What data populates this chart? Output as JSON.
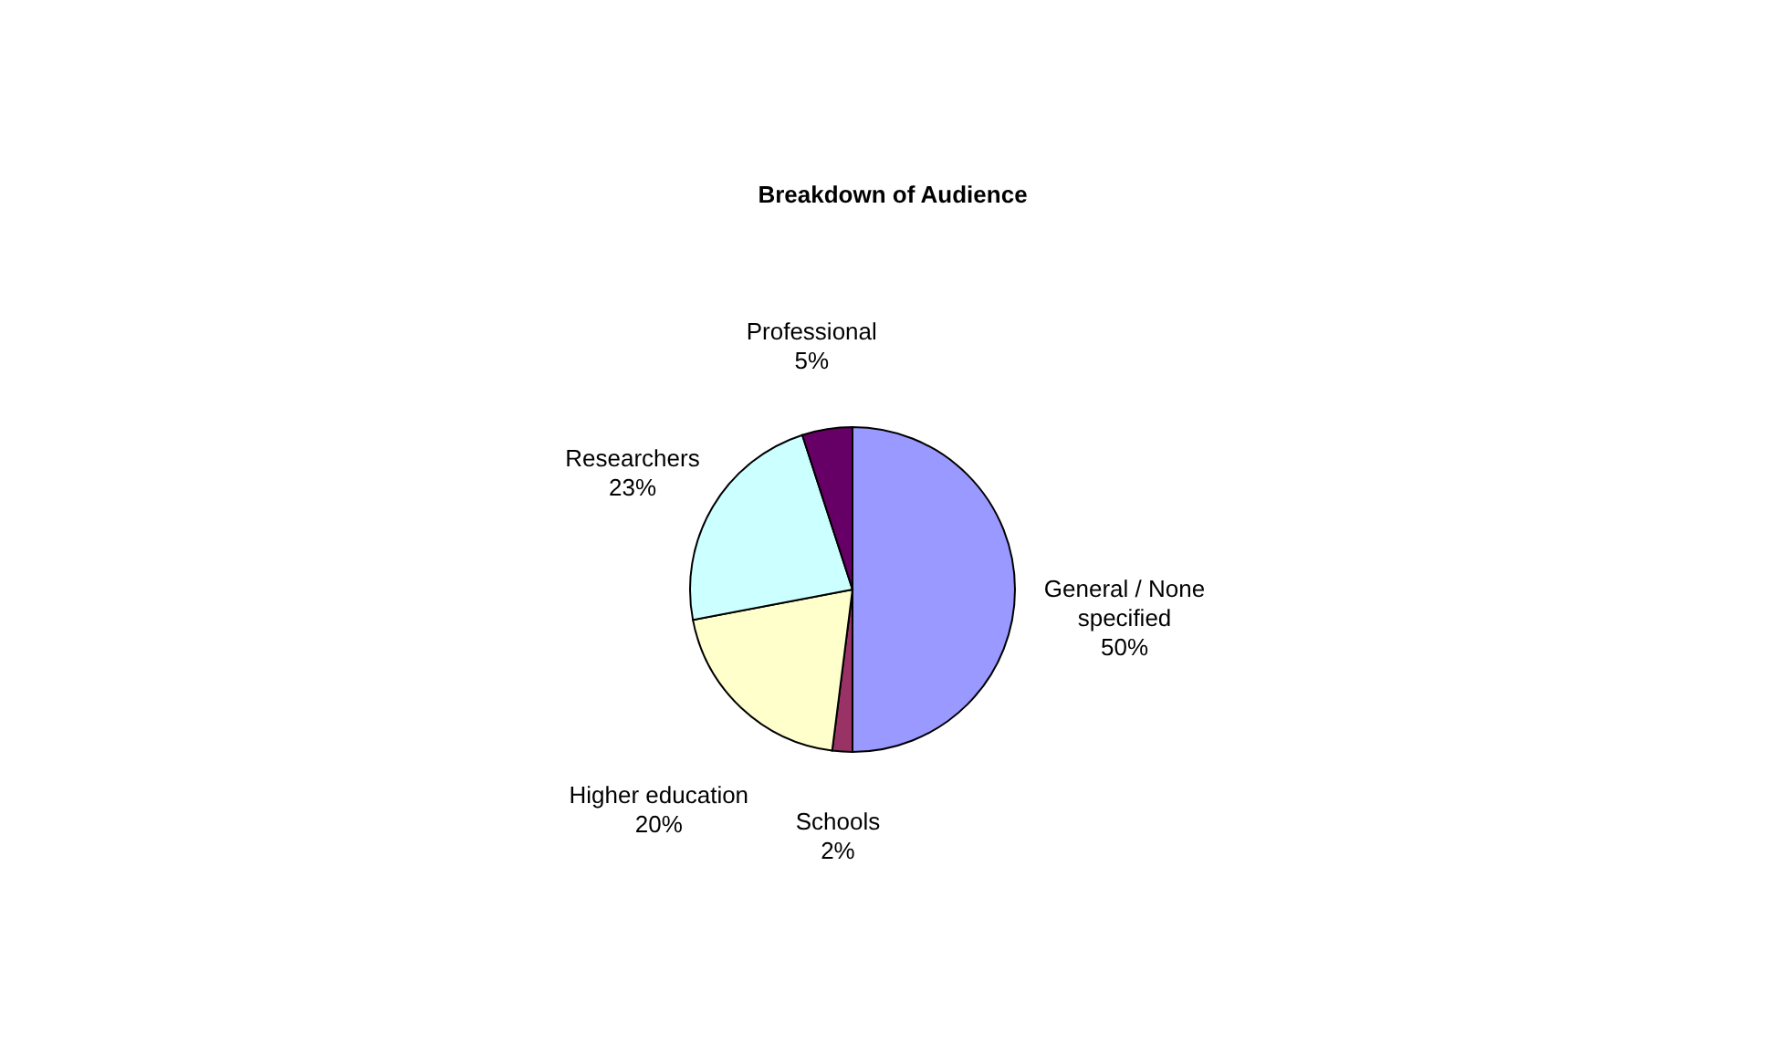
{
  "chart_data": {
    "type": "pie",
    "title": "Breakdown of Audience",
    "categories": [
      "General / None specified",
      "Schools",
      "Higher education",
      "Researchers",
      "Professional"
    ],
    "values": [
      50,
      2,
      20,
      23,
      5
    ],
    "value_labels": [
      "50%",
      "2%",
      "20%",
      "23%",
      "5%"
    ],
    "colors": [
      "#9999ff",
      "#993366",
      "#ffffcc",
      "#ccffff",
      "#660066"
    ]
  }
}
